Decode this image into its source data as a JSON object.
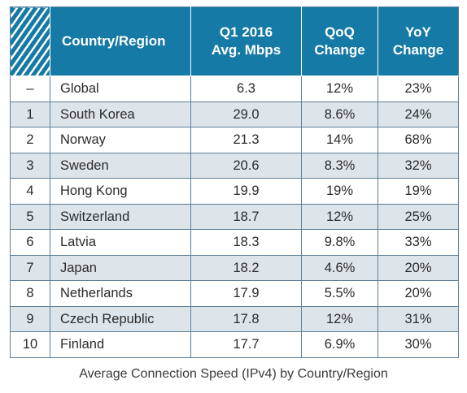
{
  "chart_data": {
    "type": "table",
    "title": "Average Connection Speed (IPv4) by Country/Region",
    "columns": [
      "",
      "Country/Region",
      "Q1 2016 Avg. Mbps",
      "QoQ Change",
      "YoY Change"
    ],
    "header": {
      "country": "Country/Region",
      "speed_line1": "Q1 2016",
      "speed_line2": "Avg. Mbps",
      "qoq_line1": "QoQ",
      "qoq_line2": "Change",
      "yoy_line1": "YoY",
      "yoy_line2": "Change"
    },
    "rows": [
      {
        "rank": "–",
        "country": "Global",
        "speed": "6.3",
        "qoq": "12%",
        "yoy": "23%"
      },
      {
        "rank": "1",
        "country": "South Korea",
        "speed": "29.0",
        "qoq": "8.6%",
        "yoy": "24%"
      },
      {
        "rank": "2",
        "country": "Norway",
        "speed": "21.3",
        "qoq": "14%",
        "yoy": "68%"
      },
      {
        "rank": "3",
        "country": "Sweden",
        "speed": "20.6",
        "qoq": "8.3%",
        "yoy": "32%"
      },
      {
        "rank": "4",
        "country": "Hong Kong",
        "speed": "19.9",
        "qoq": "19%",
        "yoy": "19%"
      },
      {
        "rank": "5",
        "country": "Switzerland",
        "speed": "18.7",
        "qoq": "12%",
        "yoy": "25%"
      },
      {
        "rank": "6",
        "country": "Latvia",
        "speed": "18.3",
        "qoq": "9.8%",
        "yoy": "33%"
      },
      {
        "rank": "7",
        "country": "Japan",
        "speed": "18.2",
        "qoq": "4.6%",
        "yoy": "20%"
      },
      {
        "rank": "8",
        "country": "Netherlands",
        "speed": "17.9",
        "qoq": "5.5%",
        "yoy": "20%"
      },
      {
        "rank": "9",
        "country": "Czech Republic",
        "speed": "17.8",
        "qoq": "12%",
        "yoy": "31%"
      },
      {
        "rank": "10",
        "country": "Finland",
        "speed": "17.7",
        "qoq": "6.9%",
        "yoy": "30%"
      }
    ]
  },
  "colors": {
    "header_bg": "#167aa6",
    "header_text": "#ffffff",
    "row_stripe": "#dde5eb",
    "border": "#5e7e96"
  }
}
